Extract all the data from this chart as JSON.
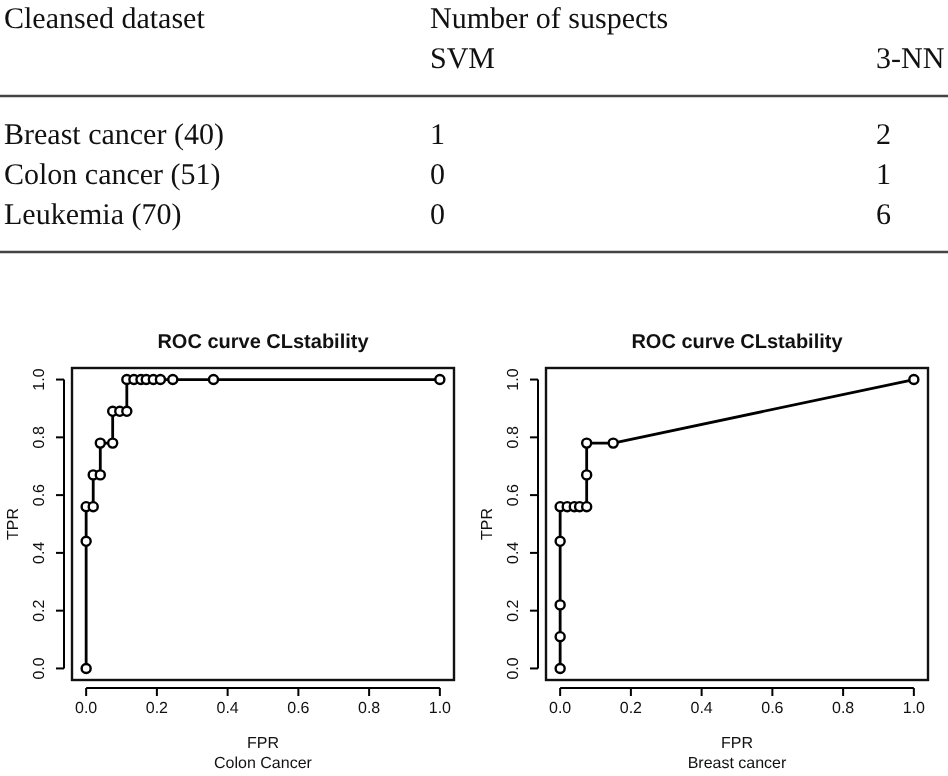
{
  "chart_data": [
    {
      "type": "other",
      "annotations": [
        "Cleansed dataset",
        "Number of suspects"
      ],
      "categories": [
        "Breast cancer (40)",
        "Colon cancer (51)",
        "Leukemia (70)"
      ],
      "data_labels": true,
      "series": [
        {
          "name": "SVM",
          "values": [
            1,
            0,
            0
          ]
        },
        {
          "name": "3-NN",
          "values": [
            2,
            1,
            6
          ]
        }
      ]
    },
    {
      "type": "line",
      "title": "ROC curve CLstability",
      "xlabel": "FPR",
      "ylabel": "TPR",
      "annotations": [
        "Colon Cancer"
      ],
      "marker": "circle",
      "grid": false,
      "xlim": [
        -0.04,
        1.04
      ],
      "ylim": [
        -0.04,
        1.04
      ],
      "xticks": [
        {
          "value": 0,
          "label": "0.0"
        },
        {
          "value": 0.2,
          "label": "0.2"
        },
        {
          "value": 0.4,
          "label": "0.4"
        },
        {
          "value": 0.6,
          "label": "0.6"
        },
        {
          "value": 0.8,
          "label": "0.8"
        },
        {
          "value": 1,
          "label": "1.0"
        }
      ],
      "yticks": [
        {
          "value": 0,
          "label": "0.0"
        },
        {
          "value": 0.2,
          "label": "0.2"
        },
        {
          "value": 0.4,
          "label": "0.4"
        },
        {
          "value": 0.6,
          "label": "0.6"
        },
        {
          "value": 0.8,
          "label": "0.8"
        },
        {
          "value": 1,
          "label": "1.0"
        }
      ],
      "series": [
        {
          "color": "#000000",
          "x": [
            0,
            0,
            0,
            0.02,
            0.02,
            0.035,
            0.04,
            0.04,
            0.075,
            0.075,
            0.095,
            0.115,
            0.115,
            0.135,
            0.155,
            0.17,
            0.19,
            0.21,
            0.245,
            0.36,
            1
          ],
          "values": [
            0,
            0.44,
            0.56,
            0.56,
            0.67,
            null,
            0.67,
            0.78,
            0.78,
            0.89,
            0.89,
            0.89,
            1,
            1,
            1,
            1,
            1,
            1,
            1,
            1,
            1
          ]
        }
      ]
    },
    {
      "type": "line",
      "title": "ROC curve CLstability",
      "xlabel": "FPR",
      "ylabel": "TPR",
      "annotations": [
        "Breast cancer"
      ],
      "marker": "circle",
      "grid": false,
      "xlim": [
        -0.04,
        1.04
      ],
      "ylim": [
        -0.04,
        1.04
      ],
      "xticks": [
        {
          "value": 0,
          "label": "0.0"
        },
        {
          "value": 0.2,
          "label": "0.2"
        },
        {
          "value": 0.4,
          "label": "0.4"
        },
        {
          "value": 0.6,
          "label": "0.6"
        },
        {
          "value": 0.8,
          "label": "0.8"
        },
        {
          "value": 1,
          "label": "1.0"
        }
      ],
      "yticks": [
        {
          "value": 0,
          "label": "0.0"
        },
        {
          "value": 0.2,
          "label": "0.2"
        },
        {
          "value": 0.4,
          "label": "0.4"
        },
        {
          "value": 0.6,
          "label": "0.6"
        },
        {
          "value": 0.8,
          "label": "0.8"
        },
        {
          "value": 1,
          "label": "1.0"
        }
      ],
      "series": [
        {
          "color": "#000000",
          "x": [
            0,
            0,
            0,
            0,
            0,
            0.02,
            0.04,
            0.055,
            0.075,
            0.075,
            0.075,
            0.15,
            1
          ],
          "values": [
            0,
            0.11,
            0.22,
            0.44,
            0.56,
            0.56,
            0.56,
            0.56,
            0.56,
            0.67,
            0.78,
            0.78,
            1
          ]
        }
      ]
    }
  ]
}
